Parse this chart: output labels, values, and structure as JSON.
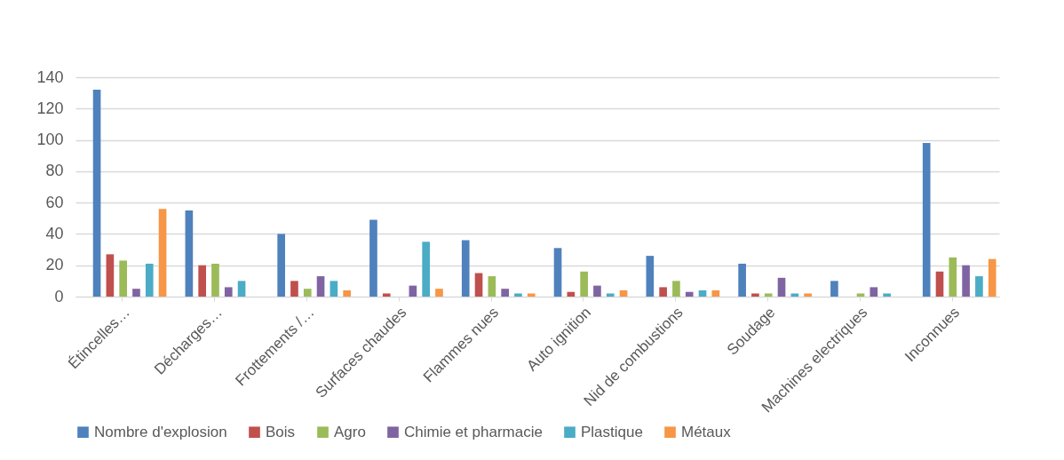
{
  "chart_data": {
    "type": "bar",
    "categories": [
      "Étincelles…",
      "Décharges…",
      "Frottements /…",
      "Surfaces chaudes",
      "Flammes nues",
      "Auto ignition",
      "Nid de combustions",
      "Soudage",
      "Machines electriques",
      "Inconnues"
    ],
    "series": [
      {
        "name": "Nombre d'explosion",
        "color": "#4f81bd",
        "values": [
          132,
          55,
          40,
          49,
          36,
          31,
          26,
          21,
          10,
          98
        ]
      },
      {
        "name": "Bois",
        "color": "#c0504d",
        "values": [
          27,
          20,
          10,
          2,
          15,
          3,
          6,
          2,
          null,
          16
        ]
      },
      {
        "name": "Agro",
        "color": "#9bbb59",
        "values": [
          23,
          21,
          5,
          null,
          13,
          16,
          10,
          2,
          2,
          25
        ]
      },
      {
        "name": "Chimie et pharmacie",
        "color": "#8064a2",
        "values": [
          5,
          6,
          13,
          7,
          5,
          7,
          3,
          12,
          6,
          20
        ]
      },
      {
        "name": "Plastique",
        "color": "#4bacc6",
        "values": [
          21,
          10,
          10,
          35,
          2,
          2,
          4,
          2,
          2,
          13
        ]
      },
      {
        "name": "Métaux",
        "color": "#f79646",
        "values": [
          56,
          null,
          4,
          5,
          2,
          4,
          4,
          2,
          null,
          24
        ]
      }
    ],
    "ylim": [
      0,
      140
    ],
    "yticks": [
      0,
      20,
      40,
      60,
      80,
      100,
      120,
      140
    ],
    "grid": "y",
    "legend": "bottom"
  }
}
